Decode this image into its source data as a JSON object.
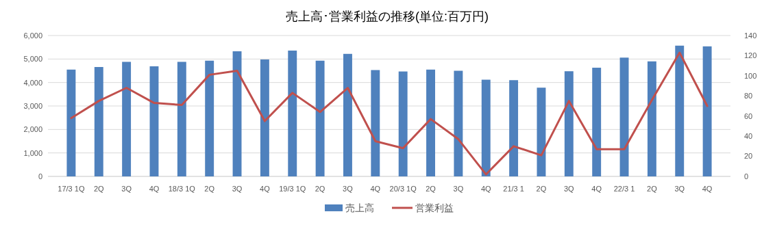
{
  "chart_data": {
    "type": "bar",
    "title": "売上高･営業利益の推移(単位:百万円)",
    "categories": [
      "17/3 1Q",
      "2Q",
      "3Q",
      "4Q",
      "18/3 1Q",
      "2Q",
      "3Q",
      "4Q",
      "19/3 1Q",
      "2Q",
      "3Q",
      "4Q",
      "20/3 1Q",
      "2Q",
      "3Q",
      "4Q",
      "21/3 1",
      "2Q",
      "3Q",
      "4Q",
      "22/3 1",
      "2Q",
      "3Q",
      "4Q"
    ],
    "series": [
      {
        "name": "売上高",
        "color": "#4f81bd",
        "values": [
          4550,
          4660,
          4880,
          4690,
          4880,
          4930,
          5330,
          4980,
          5360,
          4930,
          5220,
          4530,
          4470,
          4550,
          4500,
          4120,
          4100,
          3780,
          4480,
          4630,
          5060,
          4900,
          5570,
          5540
        ]
      },
      {
        "name": "営業利益",
        "type": "line",
        "axis": "y2",
        "color": "#c0504d",
        "values": [
          58,
          75,
          88,
          73,
          71,
          101,
          105,
          55,
          83,
          64,
          88,
          35,
          28,
          57,
          37,
          2,
          30,
          21,
          75,
          27,
          27,
          76,
          123,
          70
        ]
      }
    ],
    "ylim": [
      0,
      6000
    ],
    "yticks": [
      {
        "value": 0,
        "label": "0"
      },
      {
        "value": 1000,
        "label": "1,000"
      },
      {
        "value": 2000,
        "label": "2,000"
      },
      {
        "value": 3000,
        "label": "3,000"
      },
      {
        "value": 4000,
        "label": "4,000"
      },
      {
        "value": 5000,
        "label": "5,000"
      },
      {
        "value": 6000,
        "label": "6,000"
      }
    ],
    "y2lim": [
      0,
      140
    ],
    "y2ticks": [
      0,
      20,
      40,
      60,
      80,
      100,
      120,
      140
    ],
    "grid": "y",
    "legend": "bottom",
    "marker": "none",
    "line_style": "solid"
  }
}
